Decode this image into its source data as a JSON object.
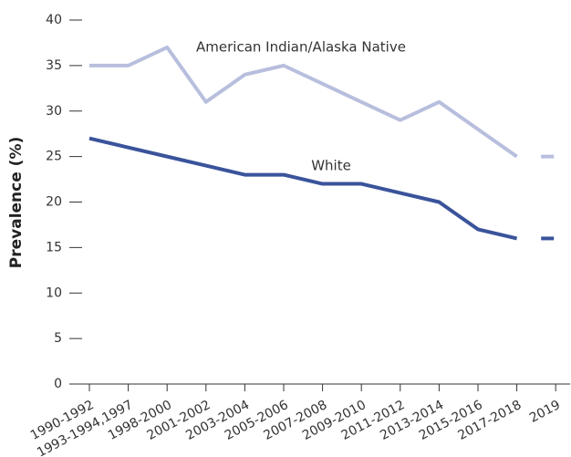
{
  "chart_data": {
    "type": "line",
    "y_label": "Prevalence (%)",
    "categories": [
      "1990-1992",
      "1993-1994,1997",
      "1998-2000",
      "2001-2002",
      "2003-2004",
      "2005-2006",
      "2007-2008",
      "2009-2010",
      "2011-2012",
      "2013-2014",
      "2015-2016",
      "2017-2018",
      "2019"
    ],
    "series": [
      {
        "name": "American Indian/Alaska Native",
        "color": "#b8bedd",
        "values": [
          35,
          35,
          37,
          31,
          34,
          35,
          33,
          31,
          29,
          31,
          28,
          25,
          25
        ]
      },
      {
        "name": "White",
        "color": "#3a539b",
        "values": [
          27,
          26,
          25,
          24,
          23,
          23,
          22,
          22,
          21,
          20,
          17,
          16,
          16
        ]
      }
    ],
    "last_point_detached": true,
    "ylim": [
      0,
      40
    ],
    "yticks": [
      0,
      5,
      10,
      15,
      20,
      25,
      30,
      35,
      40
    ]
  }
}
